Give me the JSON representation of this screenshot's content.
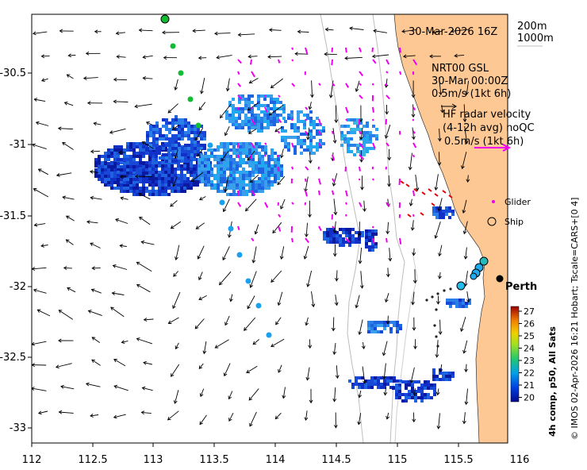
{
  "map": {
    "header_datetime": "30-Mar-2026 16Z",
    "isobath_labels": [
      "200m",
      "1000m"
    ],
    "nrt_lines": [
      "NRT00 GSL",
      "30-Mar 00:00Z",
      "0.5m/s (1kt 6h)"
    ],
    "hf_radar_lines": [
      "HF radar velocity",
      "(4-12h avg) noQC",
      "0.5m/s (1kt 6h)"
    ],
    "legend_glider": "Glider",
    "legend_ship": "Ship",
    "city_label": "Perth",
    "colorbar_title": "4h comp, p50, All Sats",
    "colorbar_ticks": [
      "27",
      "26",
      "25",
      "24",
      "23",
      "22",
      "21",
      "20"
    ],
    "credit": "© IMOS 02-Apr-2026 16:21 Hobart; Tscale=CARS+[0 4]",
    "x_ticks": [
      "112",
      "112.5",
      "113",
      "113.5",
      "114",
      "114.5",
      "115",
      "115.5",
      "116"
    ],
    "y_ticks": [
      "-30.5",
      "-31",
      "-31.5",
      "-32",
      "-32.5",
      "-33"
    ],
    "colors": {
      "land": "#fdc894",
      "radar_vectors": "#ee00ee",
      "hf_vectors": "#dd0000",
      "track": "#11bb33",
      "sst_low": "#000a8c",
      "sst_high": "#9b0000"
    }
  }
}
